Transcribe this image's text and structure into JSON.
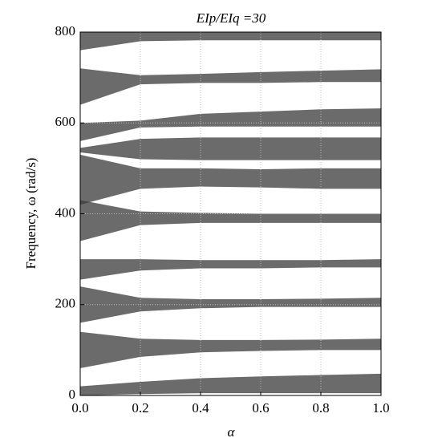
{
  "chart_data": {
    "type": "band",
    "title": "EIp/EIq =30",
    "x_label": "α",
    "y_label": "Frequency, ω (rad/s)",
    "x": [
      0,
      0.2,
      0.4,
      0.6,
      0.8,
      1
    ],
    "bands": [
      {
        "lower": [
          0,
          3,
          5,
          5,
          5,
          5
        ],
        "upper": [
          20,
          30,
          38,
          42,
          45,
          48
        ]
      },
      {
        "lower": [
          60,
          85,
          95,
          98,
          100,
          100
        ],
        "upper": [
          140,
          125,
          122,
          122,
          123,
          125
        ]
      },
      {
        "lower": [
          160,
          185,
          192,
          195,
          195,
          195
        ],
        "upper": [
          240,
          215,
          212,
          212,
          213,
          215
        ]
      },
      {
        "lower": [
          255,
          275,
          280,
          280,
          282,
          282
        ],
        "upper": [
          300,
          300,
          298,
          298,
          298,
          300
        ]
      },
      {
        "lower": [
          340,
          375,
          380,
          380,
          380,
          380
        ],
        "upper": [
          430,
          405,
          402,
          400,
          400,
          400
        ]
      },
      {
        "lower": [
          420,
          455,
          460,
          458,
          455,
          455
        ],
        "upper": [
          530,
          500,
          500,
          498,
          500,
          500
        ]
      },
      {
        "lower": [
          535,
          520,
          518,
          518,
          518,
          518
        ],
        "upper": [
          545,
          565,
          568,
          568,
          568,
          568
        ]
      },
      {
        "lower": [
          560,
          590,
          592,
          592,
          592,
          592
        ],
        "upper": [
          600,
          605,
          620,
          625,
          630,
          632
        ]
      },
      {
        "lower": [
          640,
          685,
          688,
          688,
          690,
          690
        ],
        "upper": [
          720,
          705,
          708,
          712,
          715,
          718
        ]
      },
      {
        "lower": [
          760,
          780,
          782,
          782,
          782,
          782
        ],
        "upper": [
          800,
          800,
          800,
          800,
          800,
          800
        ]
      }
    ],
    "color": "#3a3a3a",
    "xlim": [
      0,
      1
    ],
    "ylim": [
      0,
      800
    ],
    "xticks": [
      {
        "value": 0,
        "label": "0.0"
      },
      0.2,
      0.4,
      0.6,
      0.8,
      {
        "value": 1,
        "label": "1.0"
      }
    ],
    "yticks": [
      0,
      200,
      400,
      600,
      800
    ],
    "grid": true
  }
}
